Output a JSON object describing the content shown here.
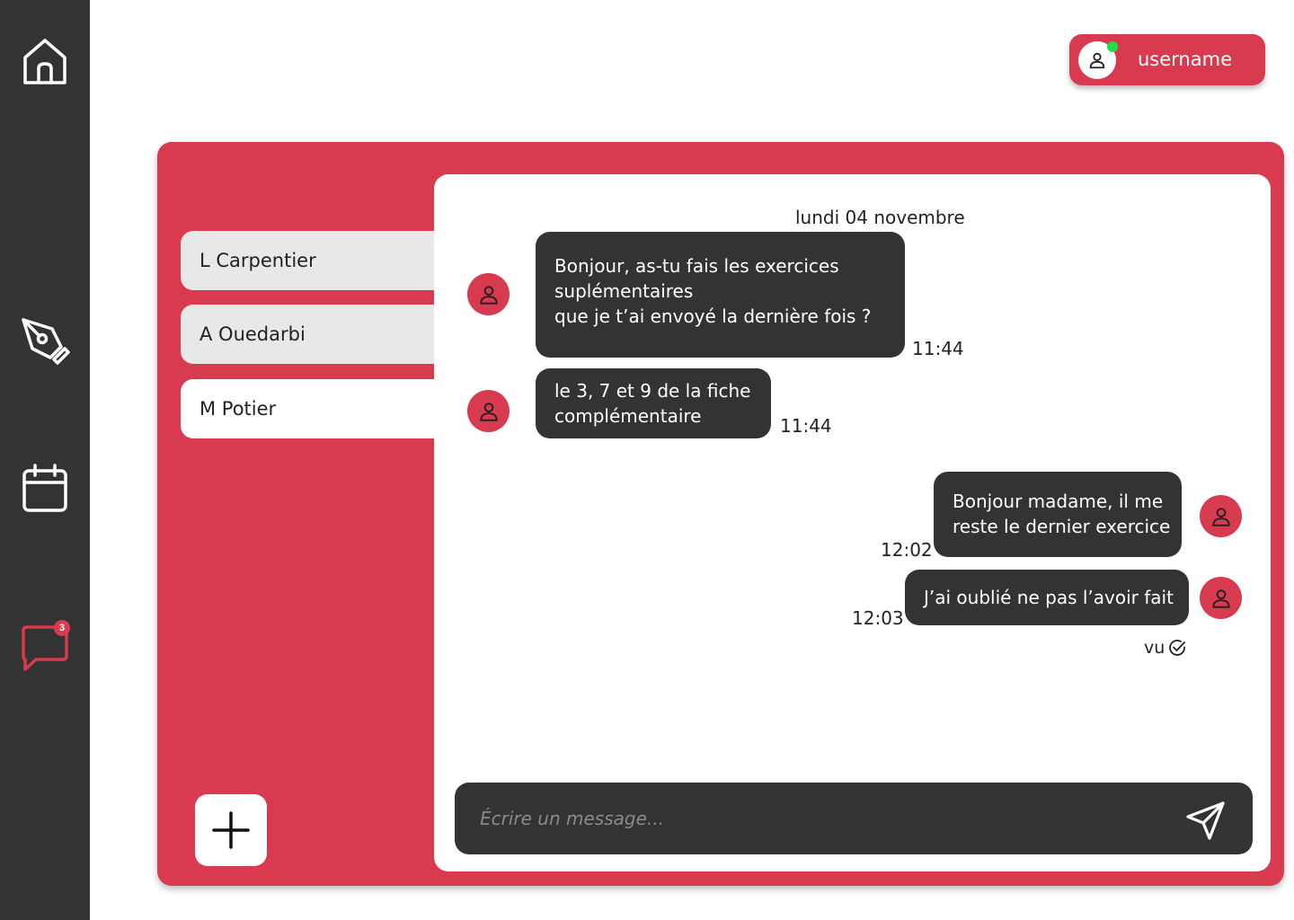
{
  "sidebar": {
    "items": [
      {
        "name": "home",
        "icon": "home-icon"
      },
      {
        "name": "homework",
        "icon": "pen-nib-icon"
      },
      {
        "name": "calendar",
        "icon": "calendar-icon"
      },
      {
        "name": "messages",
        "icon": "chat-icon",
        "badge": "3",
        "active": true
      }
    ]
  },
  "user": {
    "name": "username",
    "status_color": "#22dd44"
  },
  "contacts": [
    {
      "name": "L Carpentier"
    },
    {
      "name": "A Ouedarbi"
    },
    {
      "name": "M Potier",
      "selected": true
    }
  ],
  "chat": {
    "date": "lundi 04 novembre",
    "messages": [
      {
        "side": "received",
        "lines": [
          "Bonjour, as-tu fais les exercices",
          "suplémentaires",
          "que je t’ai envoyé la dernière fois ?"
        ],
        "time": "11:44"
      },
      {
        "side": "received",
        "lines": [
          "le 3, 7 et 9 de la fiche",
          "complémentaire"
        ],
        "time": "11:44"
      },
      {
        "side": "sent",
        "lines": [
          "Bonjour madame, il me",
          "reste le dernier exercice"
        ],
        "time": "12:02"
      },
      {
        "side": "sent",
        "lines": [
          "J’ai oublié ne pas l’avoir fait"
        ],
        "time": "12:03"
      }
    ],
    "seen_label": "vu"
  },
  "composer": {
    "placeholder": "Écrire un message..."
  },
  "colors": {
    "accent": "#d83a4f",
    "dark": "#333333",
    "contact_bg": "#e8e8e8"
  }
}
